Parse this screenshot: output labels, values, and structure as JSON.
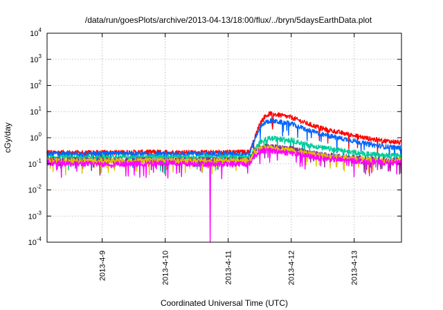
{
  "chart_data": {
    "type": "line",
    "title": "/data/run/goesPlots/archive/2013-04-13/18:00/flux/../bryn/5daysEarthData.plot",
    "xlabel": "Coordinated Universal Time (UTC)",
    "ylabel": "cGy/day",
    "yscale": "log",
    "ylim": [
      0.0001,
      10000
    ],
    "xlim": [
      "2013-04-08 03:00",
      "2013-04-13 18:00"
    ],
    "yticks": [
      {
        "base": "10",
        "exp": "-4",
        "value": 0.0001
      },
      {
        "base": "10",
        "exp": "-3",
        "value": 0.001
      },
      {
        "base": "10",
        "exp": "-2",
        "value": 0.01
      },
      {
        "base": "10",
        "exp": "-1",
        "value": 0.1
      },
      {
        "base": "10",
        "exp": "0",
        "value": 1
      },
      {
        "base": "10",
        "exp": "1",
        "value": 10
      },
      {
        "base": "10",
        "exp": "2",
        "value": 100
      },
      {
        "base": "10",
        "exp": "3",
        "value": 1000
      },
      {
        "base": "10",
        "exp": "4",
        "value": 10000
      }
    ],
    "xticks": [
      {
        "label": "2013-4-9",
        "value": "2013-04-09 00:00"
      },
      {
        "label": "2013-4-10",
        "value": "2013-04-10 00:00"
      },
      {
        "label": "2013-4-11",
        "value": "2013-04-11 00:00"
      },
      {
        "label": "2013-4-12",
        "value": "2013-04-12 00:00"
      },
      {
        "label": "2013-4-13",
        "value": "2013-04-13 00:00"
      }
    ],
    "grid": true,
    "legend": "none",
    "series": [
      {
        "color": "#ff0000",
        "x": [
          "2013-04-08 03:00",
          "2013-04-08 12:00",
          "2013-04-09 00:00",
          "2013-04-09 12:00",
          "2013-04-10 00:00",
          "2013-04-10 12:00",
          "2013-04-11 00:00",
          "2013-04-11 08:00",
          "2013-04-11 10:00",
          "2013-04-11 12:00",
          "2013-04-11 14:00",
          "2013-04-11 16:00",
          "2013-04-12 00:00",
          "2013-04-12 06:00",
          "2013-04-12 12:00",
          "2013-04-13 00:00",
          "2013-04-13 06:00",
          "2013-04-13 12:00",
          "2013-04-13 18:00"
        ],
        "y": [
          0.28,
          0.27,
          0.27,
          0.28,
          0.28,
          0.27,
          0.28,
          0.28,
          0.9,
          3.5,
          6.5,
          8.5,
          6.0,
          3.5,
          2.2,
          1.2,
          0.9,
          0.75,
          0.65
        ]
      },
      {
        "color": "#0066ff",
        "x": [
          "2013-04-08 03:00",
          "2013-04-08 12:00",
          "2013-04-09 00:00",
          "2013-04-09 12:00",
          "2013-04-10 00:00",
          "2013-04-10 12:00",
          "2013-04-11 00:00",
          "2013-04-11 08:00",
          "2013-04-11 10:00",
          "2013-04-11 12:00",
          "2013-04-11 14:00",
          "2013-04-11 16:00",
          "2013-04-12 00:00",
          "2013-04-12 06:00",
          "2013-04-12 12:00",
          "2013-04-13 00:00",
          "2013-04-13 06:00",
          "2013-04-13 12:00",
          "2013-04-13 18:00"
        ],
        "y": [
          0.24,
          0.23,
          0.24,
          0.24,
          0.23,
          0.24,
          0.24,
          0.24,
          0.8,
          2.4,
          3.8,
          4.5,
          3.4,
          2.0,
          1.3,
          0.75,
          0.55,
          0.45,
          0.4
        ]
      },
      {
        "color": "#00cc99",
        "x": [
          "2013-04-08 03:00",
          "2013-04-08 12:00",
          "2013-04-09 00:00",
          "2013-04-09 12:00",
          "2013-04-10 00:00",
          "2013-04-10 12:00",
          "2013-04-11 00:00",
          "2013-04-11 08:00",
          "2013-04-11 10:00",
          "2013-04-11 12:00",
          "2013-04-11 14:00",
          "2013-04-11 16:00",
          "2013-04-12 00:00",
          "2013-04-12 06:00",
          "2013-04-12 12:00",
          "2013-04-13 00:00",
          "2013-04-13 06:00",
          "2013-04-13 12:00",
          "2013-04-13 18:00"
        ],
        "y": [
          0.18,
          0.18,
          0.18,
          0.18,
          0.18,
          0.18,
          0.18,
          0.18,
          0.35,
          0.65,
          0.85,
          0.95,
          0.8,
          0.55,
          0.4,
          0.28,
          0.23,
          0.21,
          0.2
        ]
      },
      {
        "color": "#8a2b8a",
        "x": [
          "2013-04-08 03:00",
          "2013-04-08 12:00",
          "2013-04-09 00:00",
          "2013-04-09 12:00",
          "2013-04-10 00:00",
          "2013-04-10 12:00",
          "2013-04-11 00:00",
          "2013-04-11 08:00",
          "2013-04-11 10:00",
          "2013-04-11 12:00",
          "2013-04-11 14:00",
          "2013-04-11 16:00",
          "2013-04-12 00:00",
          "2013-04-12 06:00",
          "2013-04-12 12:00",
          "2013-04-13 00:00",
          "2013-04-13 06:00",
          "2013-04-13 12:00",
          "2013-04-13 18:00"
        ],
        "y": [
          0.14,
          0.14,
          0.14,
          0.14,
          0.14,
          0.14,
          0.14,
          0.14,
          0.3,
          0.42,
          0.45,
          0.44,
          0.38,
          0.28,
          0.22,
          0.17,
          0.15,
          0.14,
          0.14
        ]
      },
      {
        "color": "#e0c000",
        "x": [
          "2013-04-08 03:00",
          "2013-04-08 12:00",
          "2013-04-09 00:00",
          "2013-04-09 12:00",
          "2013-04-10 00:00",
          "2013-04-10 12:00",
          "2013-04-11 00:00",
          "2013-04-11 08:00",
          "2013-04-11 10:00",
          "2013-04-11 12:00",
          "2013-04-11 14:00",
          "2013-04-11 16:00",
          "2013-04-12 00:00",
          "2013-04-12 06:00",
          "2013-04-12 12:00",
          "2013-04-13 00:00",
          "2013-04-13 06:00",
          "2013-04-13 12:00",
          "2013-04-13 18:00"
        ],
        "y": [
          0.13,
          0.13,
          0.13,
          0.13,
          0.13,
          0.13,
          0.13,
          0.13,
          0.27,
          0.38,
          0.4,
          0.39,
          0.34,
          0.25,
          0.2,
          0.16,
          0.14,
          0.13,
          0.13
        ]
      },
      {
        "color": "#ff00ff",
        "x": [
          "2013-04-08 03:00",
          "2013-04-08 12:00",
          "2013-04-09 00:00",
          "2013-04-09 12:00",
          "2013-04-10 00:00",
          "2013-04-10 12:00",
          "2013-04-10 17:00",
          "2013-04-10 17:10",
          "2013-04-10 17:20",
          "2013-04-11 00:00",
          "2013-04-11 08:00",
          "2013-04-11 10:00",
          "2013-04-11 12:00",
          "2013-04-11 14:00",
          "2013-04-11 16:00",
          "2013-04-12 00:00",
          "2013-04-12 06:00",
          "2013-04-12 12:00",
          "2013-04-13 00:00",
          "2013-04-13 06:00",
          "2013-04-13 12:00",
          "2013-04-13 18:00"
        ],
        "y": [
          0.11,
          0.1,
          0.1,
          0.1,
          0.11,
          0.1,
          0.1,
          0.0001,
          0.1,
          0.1,
          0.1,
          0.2,
          0.3,
          0.33,
          0.32,
          0.26,
          0.2,
          0.16,
          0.13,
          0.12,
          0.11,
          0.11
        ]
      }
    ]
  }
}
